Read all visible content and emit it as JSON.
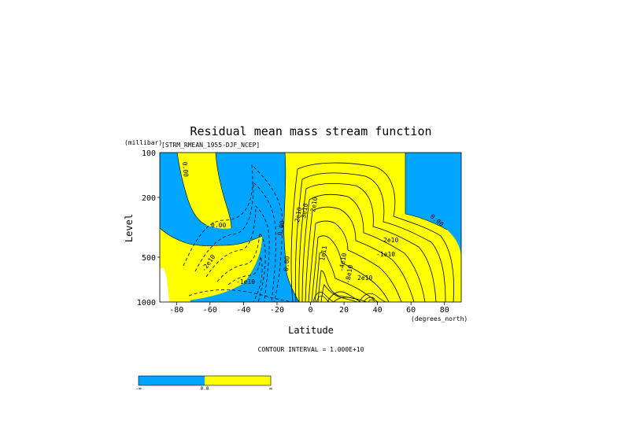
{
  "chart_data": {
    "type": "contour",
    "title": "Residual mean mass stream function",
    "subtitle": "[STRM_RMEAN_1955-DJF_NCEP]",
    "unit_label": "(millibar)",
    "ylabel": "Level",
    "xlabel": "Latitude",
    "xunit_label": "(degrees_north)",
    "xlim": [
      -90,
      90
    ],
    "ylim": [
      1000,
      100
    ],
    "y_scale": "log",
    "x_ticks": [
      "-80",
      "-60",
      "-40",
      "-20",
      "0",
      "20",
      "40",
      "60",
      "80"
    ],
    "y_ticks": [
      "100",
      "200",
      "500",
      "1000"
    ],
    "contour_interval_text": "CONTOUR INTERVAL = 1.000E+10",
    "contour_labels": [
      "0.00",
      "0.00",
      "0.00",
      "0.00",
      "0.00",
      "2e10",
      "3e10",
      "2e10",
      "2e10",
      "1e11",
      "2e10",
      "-2e10",
      "-1e10",
      "-4e10",
      "-1e10",
      "-8e10"
    ],
    "colors": {
      "negative": "#00a5ff",
      "positive": "#ffff00",
      "missing": "#ffffff"
    },
    "colorbar": {
      "labels": [
        "-∞",
        "0.0",
        "∞"
      ],
      "colors": [
        "#00a5ff",
        "#ffff00"
      ]
    }
  }
}
